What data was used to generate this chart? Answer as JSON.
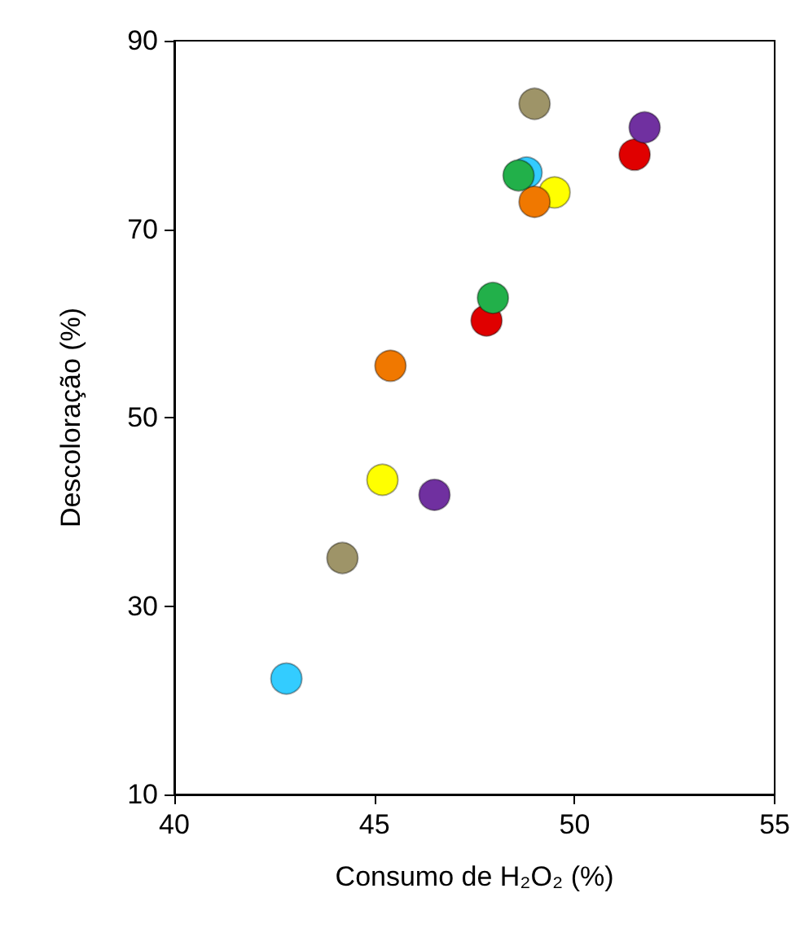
{
  "chart_data": {
    "type": "scatter",
    "xlabel": "Consumo de H₂O₂ (%)",
    "ylabel": "Descoloração (%)",
    "xlim": [
      40,
      55
    ],
    "xticks": [
      40,
      45,
      50,
      55
    ],
    "ylim": [
      10,
      90
    ],
    "yticks": [
      10,
      30,
      50,
      70,
      90
    ],
    "grid": false,
    "marker": "circle",
    "series": [
      {
        "color": "#33ccff",
        "x": [
          42.8,
          48.8
        ],
        "values": [
          22.3,
          76
        ]
      },
      {
        "color": "#9e9468",
        "x": [
          44.2,
          49.0
        ],
        "values": [
          35.1,
          83.3
        ]
      },
      {
        "color": "#e00000",
        "x": [
          47.8,
          51.5
        ],
        "values": [
          60.3,
          77.9
        ]
      },
      {
        "color": "#7030a0",
        "x": [
          46.5,
          51.75
        ],
        "values": [
          41.8,
          80.8
        ]
      },
      {
        "color": "#ffff00",
        "x": [
          45.2,
          49.5
        ],
        "values": [
          43.4,
          73.9
        ]
      },
      {
        "color": "#f07800",
        "x": [
          45.4,
          49.0
        ],
        "values": [
          55.5,
          72.9
        ]
      },
      {
        "color": "#22b04a",
        "x": [
          47.96,
          48.6
        ],
        "values": [
          62.7,
          75.7
        ]
      }
    ]
  }
}
